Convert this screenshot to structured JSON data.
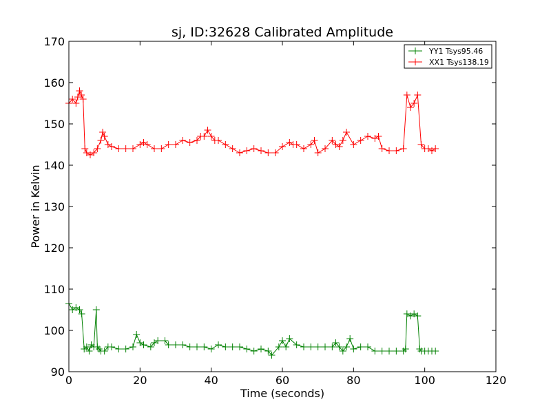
{
  "chart_data": {
    "type": "line",
    "title": "sj, ID:32628 Calibrated Amplitude",
    "xlabel": "Time (seconds)",
    "ylabel": "Power in Kelvin",
    "xlim": [
      0,
      120
    ],
    "ylim": [
      90,
      170
    ],
    "xticks": [
      "0",
      "20",
      "40",
      "60",
      "80",
      "100",
      "120"
    ],
    "yticks": [
      "90",
      "100",
      "110",
      "120",
      "130",
      "140",
      "150",
      "160",
      "170"
    ],
    "grid": false,
    "legend_position": "top-right",
    "marker": "+",
    "series": [
      {
        "name": "YY1 Tsys95.46",
        "color": "#008000",
        "x": [
          0,
          1,
          2,
          3,
          3.6,
          4.3,
          5,
          5.7,
          6.3,
          7,
          7.7,
          8,
          8.5,
          9,
          10,
          11,
          12,
          14,
          16,
          18,
          19,
          20,
          21,
          23,
          24,
          25,
          27,
          28,
          30,
          32,
          34,
          36,
          38,
          40,
          42,
          44,
          46,
          48,
          50,
          52,
          54,
          56,
          57,
          59,
          60,
          61,
          62,
          64,
          66,
          68,
          70,
          72,
          74,
          75,
          76,
          77,
          78,
          79,
          80,
          82,
          84,
          86,
          88,
          90,
          92,
          94,
          94.6,
          95,
          96,
          97,
          98,
          98.6,
          99,
          100,
          101,
          102,
          103
        ],
        "values": [
          106.5,
          105,
          105.5,
          105,
          104,
          95.5,
          96,
          95,
          96.5,
          96,
          105,
          96,
          95.5,
          95,
          95,
          96,
          96,
          95.5,
          95.5,
          96,
          99,
          97,
          96.5,
          96,
          97,
          97.5,
          97.5,
          96.5,
          96.5,
          96.5,
          96,
          96,
          96,
          95.5,
          96.5,
          96,
          96,
          96,
          95.5,
          95,
          95.5,
          95,
          94,
          96,
          97.5,
          96,
          98,
          96.5,
          96,
          96,
          96,
          96,
          96,
          97,
          96,
          95,
          96,
          98,
          95.5,
          96,
          96,
          95,
          95,
          95,
          95,
          95,
          95.5,
          104,
          103.5,
          104,
          103.5,
          95.5,
          95,
          95,
          95,
          95,
          95
        ]
      },
      {
        "name": "XX1 Tsys138.19",
        "color": "#ff0000",
        "x": [
          0,
          1,
          2,
          2.5,
          3,
          3.5,
          4,
          4.5,
          5,
          6,
          7,
          8,
          9,
          9.5,
          10,
          11,
          12,
          14,
          16,
          18,
          20,
          21,
          22,
          24,
          26,
          28,
          30,
          32,
          34,
          36,
          37,
          38,
          39,
          40,
          41,
          42,
          44,
          46,
          48,
          50,
          52,
          54,
          56,
          58,
          60,
          62,
          63,
          64,
          66,
          68,
          69,
          70,
          72,
          74,
          75,
          76,
          77,
          78,
          80,
          82,
          84,
          86,
          87,
          88,
          90,
          92,
          94,
          95,
          96,
          97,
          98,
          99,
          100,
          101,
          102,
          103
        ],
        "values": [
          155,
          156,
          155,
          156.5,
          158,
          157,
          156,
          144,
          143,
          142.5,
          143,
          144,
          146,
          148,
          147,
          145,
          144.5,
          144,
          144,
          144,
          145,
          145.5,
          145,
          144,
          144,
          145,
          145,
          146,
          145.5,
          146,
          147,
          147,
          148.5,
          147,
          146,
          146,
          145,
          144,
          143,
          143.5,
          144,
          143.5,
          143,
          143,
          144.5,
          145.5,
          145,
          145,
          144,
          145,
          146,
          143,
          144,
          146,
          145,
          144.5,
          146,
          148,
          145,
          146,
          147,
          146.5,
          147,
          144,
          143.5,
          143.5,
          144,
          157,
          154,
          155,
          157,
          145,
          144,
          144,
          143.5,
          144
        ]
      }
    ]
  }
}
